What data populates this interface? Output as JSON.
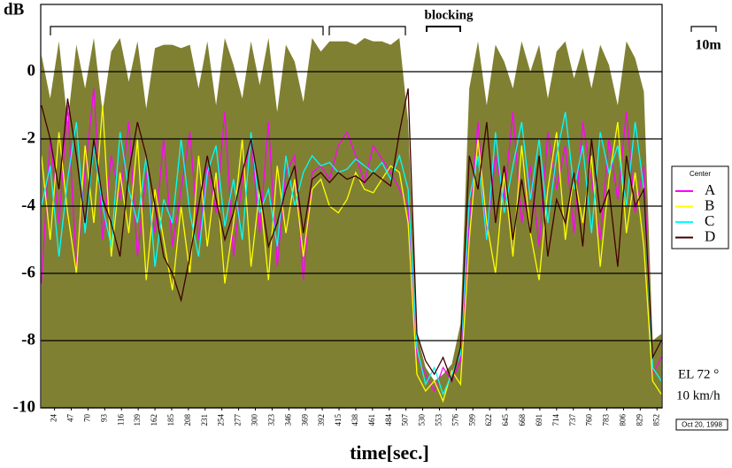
{
  "chart_data": {
    "type": "area-lines",
    "y_label": "dB",
    "x_label": "time[sec.]",
    "annotations": [
      "blocking",
      "10m",
      "EL 72 °",
      "10 km/h",
      "Oct 20, 1998"
    ],
    "legend_title": "Center",
    "legend": "right",
    "xlim": [
      5,
      859
    ],
    "ylim": [
      -10,
      2
    ],
    "yticks": [
      -10,
      -8,
      -6,
      -4,
      -2,
      0
    ],
    "grid": true,
    "xticks": [
      24,
      47,
      70,
      93,
      116,
      139,
      162,
      185,
      208,
      231,
      254,
      277,
      300,
      323,
      346,
      369,
      392,
      415,
      438,
      461,
      484,
      507,
      530,
      553,
      576,
      599,
      622,
      645,
      668,
      691,
      714,
      737,
      760,
      783,
      806,
      829,
      852
    ],
    "x": [
      6,
      18,
      30,
      42,
      54,
      66,
      78,
      90,
      102,
      114,
      126,
      138,
      150,
      162,
      174,
      186,
      198,
      210,
      222,
      234,
      246,
      258,
      270,
      282,
      294,
      306,
      318,
      330,
      342,
      354,
      366,
      378,
      390,
      402,
      414,
      426,
      438,
      450,
      462,
      474,
      486,
      498,
      510,
      522,
      534,
      546,
      558,
      570,
      582,
      594,
      606,
      618,
      630,
      642,
      654,
      666,
      678,
      690,
      702,
      714,
      726,
      738,
      750,
      762,
      774,
      786,
      798,
      810,
      822,
      834,
      846,
      858
    ],
    "area": {
      "color": "#808033",
      "values": [
        0.5,
        -0.8,
        0.9,
        -1.5,
        0.8,
        -0.5,
        1.0,
        -1.2,
        0.6,
        1.0,
        -0.3,
        0.9,
        -1.1,
        0.7,
        0.8,
        0.8,
        0.7,
        0.8,
        -0.5,
        0.9,
        -1.0,
        1.0,
        0.2,
        -0.8,
        0.9,
        -0.4,
        1.0,
        -1.2,
        0.8,
        0.3,
        -0.9,
        1.0,
        0.6,
        0.9,
        0.9,
        0.9,
        0.8,
        1.0,
        0.9,
        0.9,
        0.8,
        1.0,
        -1.5,
        -7.8,
        -8.8,
        -9.2,
        -9.0,
        -8.7,
        -7.5,
        -0.5,
        0.9,
        -1.0,
        0.8,
        0.3,
        -0.5,
        0.9,
        0.0,
        0.8,
        -0.8,
        0.6,
        0.9,
        -0.2,
        0.7,
        -0.5,
        0.8,
        0.2,
        -1.0,
        0.9,
        0.4,
        -0.6,
        -8.0,
        -7.8
      ]
    },
    "series": [
      {
        "name": "A",
        "color": "#ff00ff",
        "values": [
          -6.3,
          -2.0,
          -4.5,
          -1.0,
          -5.8,
          -3.0,
          -0.5,
          -5.0,
          -2.5,
          -3.8,
          -1.5,
          -5.5,
          -3.0,
          -4.8,
          -2.0,
          -5.2,
          -3.5,
          -1.8,
          -5.0,
          -2.8,
          -4.2,
          -1.2,
          -5.5,
          -3.2,
          -2.0,
          -4.8,
          -1.5,
          -5.8,
          -3.0,
          -2.5,
          -6.2,
          -3.0,
          -2.8,
          -3.2,
          -2.2,
          -1.8,
          -2.5,
          -3.3,
          -2.2,
          -2.6,
          -3.0,
          -3.5,
          -4.0,
          -8.5,
          -9.0,
          -9.5,
          -8.8,
          -9.2,
          -8.6,
          -4.5,
          -1.5,
          -5.0,
          -2.5,
          -3.8,
          -1.2,
          -4.5,
          -2.8,
          -5.2,
          -1.8,
          -3.5,
          -2.2,
          -4.8,
          -1.5,
          -3.2,
          -5.0,
          -2.0,
          -3.8,
          -1.2,
          -4.2,
          -2.8,
          -9.0,
          -8.5
        ]
      },
      {
        "name": "B",
        "color": "#ffff00",
        "values": [
          -2.5,
          -5.0,
          -1.8,
          -4.2,
          -6.0,
          -2.2,
          -4.5,
          -1.0,
          -5.5,
          -3.0,
          -4.8,
          -2.0,
          -6.2,
          -3.5,
          -5.0,
          -6.5,
          -4.0,
          -6.0,
          -2.5,
          -5.2,
          -3.0,
          -6.3,
          -4.5,
          -2.0,
          -5.8,
          -3.5,
          -6.2,
          -2.8,
          -4.8,
          -3.2,
          -5.5,
          -3.5,
          -3.2,
          -4.0,
          -4.2,
          -3.8,
          -3.0,
          -3.5,
          -3.6,
          -3.2,
          -2.8,
          -3.0,
          -4.5,
          -9.0,
          -9.5,
          -9.2,
          -9.8,
          -8.9,
          -9.3,
          -5.0,
          -2.0,
          -4.5,
          -6.0,
          -3.0,
          -5.5,
          -2.2,
          -4.8,
          -6.2,
          -3.5,
          -1.8,
          -5.0,
          -3.0,
          -4.5,
          -2.5,
          -5.8,
          -3.2,
          -1.5,
          -4.8,
          -3.0,
          -5.2,
          -9.2,
          -9.6
        ]
      },
      {
        "name": "C",
        "color": "#00ffff",
        "values": [
          -4.0,
          -2.8,
          -5.5,
          -3.2,
          -1.5,
          -4.8,
          -2.2,
          -4.0,
          -5.2,
          -1.8,
          -3.5,
          -4.5,
          -2.5,
          -5.8,
          -3.8,
          -4.5,
          -2.0,
          -4.2,
          -5.5,
          -3.0,
          -2.2,
          -4.6,
          -3.2,
          -5.0,
          -1.8,
          -4.2,
          -3.5,
          -5.2,
          -2.5,
          -4.0,
          -3.0,
          -2.5,
          -2.8,
          -2.7,
          -3.0,
          -2.9,
          -2.6,
          -2.8,
          -3.0,
          -2.7,
          -3.2,
          -2.5,
          -3.5,
          -8.2,
          -9.3,
          -8.8,
          -9.6,
          -9.0,
          -8.4,
          -3.8,
          -2.5,
          -5.0,
          -1.8,
          -4.2,
          -2.8,
          -1.5,
          -3.8,
          -2.0,
          -4.5,
          -2.5,
          -1.2,
          -3.5,
          -2.2,
          -4.8,
          -1.8,
          -3.0,
          -2.2,
          -4.0,
          -1.5,
          -3.5,
          -8.8,
          -9.2
        ]
      },
      {
        "name": "D",
        "color": "#400000",
        "values": [
          -1.0,
          -2.0,
          -3.5,
          -0.8,
          -2.5,
          -4.5,
          -2.0,
          -3.8,
          -4.5,
          -5.5,
          -3.0,
          -1.5,
          -2.5,
          -4.0,
          -5.5,
          -6.0,
          -6.8,
          -5.5,
          -4.0,
          -2.5,
          -3.8,
          -5.0,
          -4.2,
          -3.0,
          -2.0,
          -3.5,
          -5.2,
          -4.5,
          -3.5,
          -2.8,
          -4.8,
          -3.2,
          -3.0,
          -3.3,
          -3.0,
          -3.2,
          -3.1,
          -3.3,
          -3.0,
          -3.2,
          -3.4,
          -1.8,
          -0.5,
          -7.8,
          -8.6,
          -9.0,
          -8.5,
          -9.2,
          -8.2,
          -2.5,
          -3.5,
          -1.5,
          -4.5,
          -2.8,
          -5.0,
          -3.2,
          -4.8,
          -2.5,
          -5.5,
          -3.8,
          -4.5,
          -3.0,
          -5.2,
          -2.0,
          -4.2,
          -3.5,
          -5.8,
          -2.5,
          -4.0,
          -3.5,
          -8.5,
          -8.0
        ]
      }
    ]
  }
}
